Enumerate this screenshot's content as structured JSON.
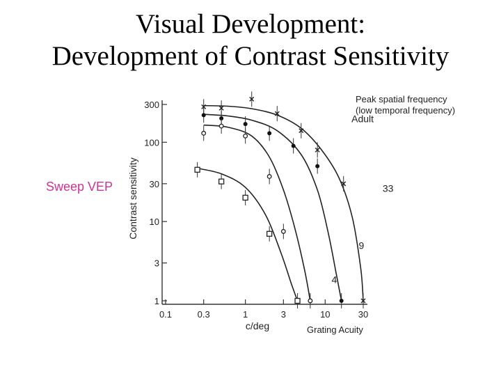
{
  "slide": {
    "title_line1": "Visual Development:",
    "title_line2": "Development of Contrast Sensitivity",
    "note_peak_line1": "Peak spatial frequency",
    "note_peak_line2": "(low temporal frequency)",
    "note_acuity": "Grating Acuity",
    "sweep_label": "Sweep VEP",
    "sweep_color": "#cc3399"
  },
  "chart_data": {
    "type": "line",
    "xlabel": "c/deg",
    "ylabel": "Contrast sensitivity",
    "x_scale": "log",
    "y_scale": "log",
    "xlim": [
      0.1,
      30
    ],
    "ylim": [
      1,
      300
    ],
    "xticks": [
      0.1,
      0.3,
      1,
      3,
      10,
      30
    ],
    "xtick_labels": [
      "0.1",
      "0.3",
      "1",
      "3",
      "10",
      "30"
    ],
    "yticks": [
      1,
      3,
      10,
      30,
      100,
      300
    ],
    "ytick_labels": [
      "1",
      "3",
      "10",
      "30",
      "100",
      "300"
    ],
    "grid": false,
    "series": [
      {
        "name": "Adult",
        "marker": "x",
        "x": [
          0.3,
          0.5,
          1.2,
          2.5,
          5,
          8,
          17,
          30
        ],
        "y": [
          280,
          270,
          350,
          230,
          140,
          80,
          30,
          1
        ],
        "fit_x": [
          0.3,
          0.6,
          1.2,
          2.5,
          5,
          9,
          15,
          22,
          28,
          30
        ],
        "fit_y": [
          290,
          285,
          265,
          220,
          150,
          80,
          35,
          11,
          2.5,
          1
        ]
      },
      {
        "name": "33",
        "marker": "filled-circle",
        "x": [
          0.3,
          0.5,
          1,
          2,
          4,
          8,
          16
        ],
        "y": [
          220,
          200,
          170,
          130,
          90,
          50,
          1
        ],
        "fit_x": [
          0.3,
          0.6,
          1.2,
          2.5,
          5,
          8,
          11,
          14,
          16
        ],
        "fit_y": [
          225,
          215,
          190,
          140,
          70,
          25,
          7,
          2,
          1
        ]
      },
      {
        "name": "9",
        "marker": "open-circle",
        "x": [
          0.3,
          0.5,
          1,
          2,
          3,
          6.5
        ],
        "y": [
          130,
          160,
          120,
          37,
          7.5,
          1
        ],
        "fit_x": [
          0.3,
          0.6,
          1.2,
          2,
          3,
          4.2,
          5.5,
          6.5
        ],
        "fit_y": [
          165,
          155,
          120,
          65,
          25,
          8,
          2.5,
          1
        ]
      },
      {
        "name": "4",
        "marker": "open-square",
        "x": [
          0.25,
          0.5,
          1,
          2,
          4.5
        ],
        "y": [
          45,
          32,
          20,
          7,
          1
        ],
        "fit_x": [
          0.25,
          0.5,
          1,
          1.8,
          2.8,
          3.8,
          4.5
        ],
        "fit_y": [
          47,
          40,
          27,
          12,
          4,
          1.6,
          1
        ]
      }
    ]
  }
}
